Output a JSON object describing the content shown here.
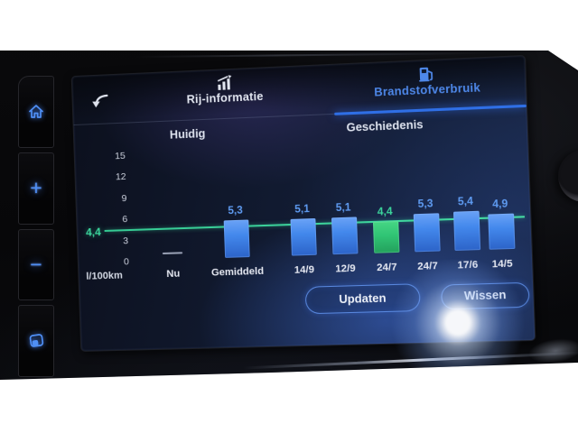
{
  "hardware": {
    "side_buttons": [
      {
        "icon": "home-icon"
      },
      {
        "icon": "plus-icon",
        "glyph": "+"
      },
      {
        "icon": "minus-icon",
        "glyph": "−"
      },
      {
        "icon": "display-icon"
      }
    ],
    "knob": "rotary-knob"
  },
  "screen": {
    "back": {
      "icon": "back-arrow-icon"
    },
    "tabs": [
      {
        "label": "Rij-informatie",
        "icon": "bar-chart-trend-icon",
        "active": false
      },
      {
        "label": "Brandstofverbruik",
        "icon": "fuel-pump-icon",
        "active": true
      }
    ],
    "actions": [
      {
        "label": "Updaten"
      },
      {
        "label": "Wissen"
      }
    ],
    "accent_blue": "#4e88ea",
    "accent_green": "#3bd49c"
  },
  "chart_data": {
    "type": "bar",
    "group_headers": [
      "Huidig",
      "Geschiedenis"
    ],
    "ylabel": "l/100km",
    "yticks": [
      15,
      12,
      9,
      6,
      3,
      0
    ],
    "ylim": [
      0,
      16
    ],
    "grid": false,
    "categories": [
      "Nu",
      "Gemiddeld",
      "14/9",
      "12/9",
      "24/7",
      "24/7",
      "17/6",
      "14/5"
    ],
    "values": [
      null,
      5.3,
      5.1,
      5.1,
      4.4,
      5.3,
      5.4,
      4.9
    ],
    "bar_labels": [
      "",
      "5,3",
      "5,1",
      "5,1",
      "4,4",
      "5,3",
      "5,4",
      "4,9"
    ],
    "highlight_index": 4,
    "reference_line": {
      "value": 4.4,
      "label": "4,4",
      "color": "#3bd49c"
    },
    "bar_color": "#4388ec",
    "highlight_color": "#30c474",
    "legend": null
  }
}
